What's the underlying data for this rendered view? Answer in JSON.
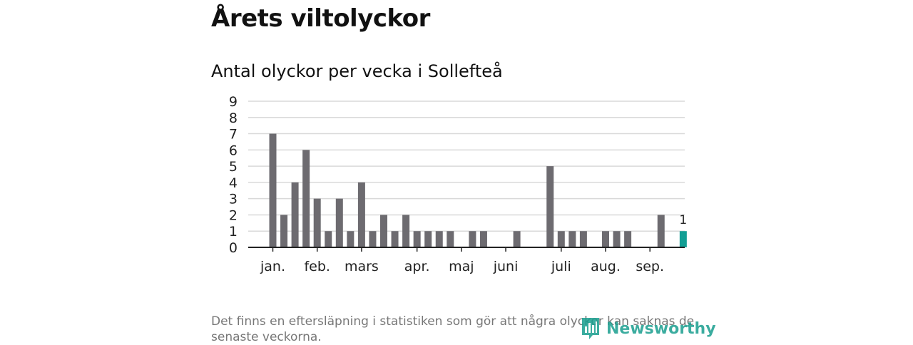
{
  "page": {
    "title": "Årets viltolyckor",
    "footnote": "Det finns en eftersläpning i statistiken som gör att några olyckor kan saknas de senaste veckorna.",
    "brand": "Newsworthy"
  },
  "colors": {
    "bar": "#6d6b70",
    "highlight": "#129e94",
    "grid": "#d9d9d9",
    "axis": "#222222",
    "brand": "#1a9e8f"
  },
  "chart_data": {
    "type": "bar",
    "title": "Antal olyckor per vecka i Sollefteå",
    "xlabel": "",
    "ylabel": "",
    "ylim": [
      0,
      9
    ],
    "yticks": [
      0,
      1,
      2,
      3,
      4,
      5,
      6,
      7,
      8,
      9
    ],
    "grid": true,
    "week_count": 38,
    "values": [
      7,
      2,
      4,
      6,
      3,
      1,
      3,
      1,
      4,
      1,
      2,
      1,
      2,
      1,
      1,
      1,
      1,
      0,
      1,
      1,
      0,
      0,
      1,
      0,
      0,
      5,
      1,
      1,
      1,
      0,
      1,
      1,
      1,
      0,
      0,
      2,
      0,
      1
    ],
    "highlight_index": 37,
    "data_labels": [
      {
        "index": 37,
        "text": "1"
      }
    ],
    "month_labels": [
      {
        "label": "jan.",
        "week": 0
      },
      {
        "label": "feb.",
        "week": 4
      },
      {
        "label": "mars",
        "week": 8
      },
      {
        "label": "apr.",
        "week": 13
      },
      {
        "label": "maj",
        "week": 17
      },
      {
        "label": "juni",
        "week": 21
      },
      {
        "label": "juli",
        "week": 26
      },
      {
        "label": "aug.",
        "week": 30
      },
      {
        "label": "sep.",
        "week": 34
      }
    ]
  }
}
